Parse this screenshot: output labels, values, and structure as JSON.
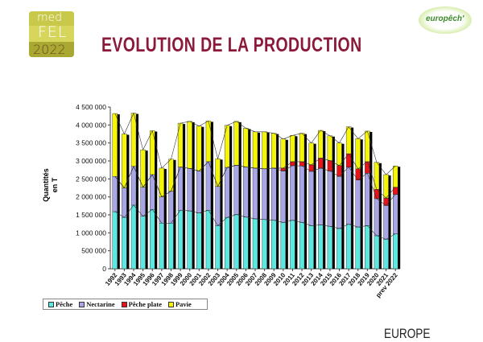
{
  "logo": {
    "line1": "med",
    "line2": "FEL",
    "line3": "2022"
  },
  "header": {
    "title": "EVOLUTION DE LA PRODUCTION",
    "brand": "europêch'"
  },
  "footer": {
    "region": "EUROPE"
  },
  "chart_data": {
    "type": "bar",
    "stacked": true,
    "title": "",
    "xlabel": "",
    "ylabel": "Quantités en T",
    "ylim": [
      0,
      4500000
    ],
    "yticks": [
      0,
      500000,
      1000000,
      1500000,
      2000000,
      2500000,
      3000000,
      3500000,
      4000000,
      4500000
    ],
    "ytick_labels": [
      "0",
      "500 000",
      "1 000 000",
      "1 500 000",
      "2 000 000",
      "2 500 000",
      "3 000 000",
      "3 500 000",
      "4 000 000",
      "4 500 000"
    ],
    "grid": false,
    "legend": "bottom-left",
    "categories": [
      "1992",
      "1993",
      "1994",
      "1995",
      "1996",
      "1997",
      "1998",
      "1999",
      "2000",
      "2001",
      "2002",
      "2003",
      "2004",
      "2005",
      "2006",
      "2007",
      "2008",
      "2009",
      "2010",
      "2011",
      "2012",
      "2013",
      "2014",
      "2015",
      "2016",
      "2017",
      "2018",
      "2019",
      "2020",
      "2021",
      "prev 2022"
    ],
    "series": [
      {
        "name": "Pêche",
        "color": "#5ce8e0",
        "values": [
          1590000,
          1430000,
          1770000,
          1460000,
          1650000,
          1270000,
          1270000,
          1630000,
          1610000,
          1550000,
          1630000,
          1200000,
          1430000,
          1510000,
          1440000,
          1390000,
          1370000,
          1350000,
          1290000,
          1350000,
          1290000,
          1200000,
          1220000,
          1180000,
          1120000,
          1240000,
          1160000,
          1200000,
          920000,
          820000,
          970000
        ]
      },
      {
        "name": "Nectarine",
        "color": "#a9a6e6",
        "values": [
          980000,
          820000,
          1080000,
          810000,
          970000,
          730000,
          890000,
          1200000,
          1180000,
          1170000,
          1350000,
          1090000,
          1390000,
          1370000,
          1390000,
          1410000,
          1410000,
          1450000,
          1430000,
          1520000,
          1570000,
          1510000,
          1580000,
          1540000,
          1450000,
          1590000,
          1310000,
          1460000,
          1030000,
          940000,
          1100000
        ]
      },
      {
        "name": "Pêche plate",
        "color": "#e8141a",
        "values": [
          0,
          0,
          0,
          0,
          0,
          0,
          0,
          0,
          0,
          0,
          0,
          0,
          0,
          0,
          0,
          0,
          0,
          0,
          80000,
          110000,
          120000,
          180000,
          280000,
          290000,
          300000,
          370000,
          310000,
          320000,
          260000,
          210000,
          200000
        ]
      },
      {
        "name": "Pavie",
        "color": "#f5f50a",
        "values": [
          1750000,
          1500000,
          1480000,
          1040000,
          1220000,
          800000,
          890000,
          1220000,
          1310000,
          1250000,
          1130000,
          770000,
          1170000,
          1220000,
          1080000,
          1010000,
          1030000,
          970000,
          810000,
          730000,
          790000,
          610000,
          770000,
          690000,
          630000,
          750000,
          840000,
          850000,
          750000,
          650000,
          590000
        ]
      }
    ]
  }
}
